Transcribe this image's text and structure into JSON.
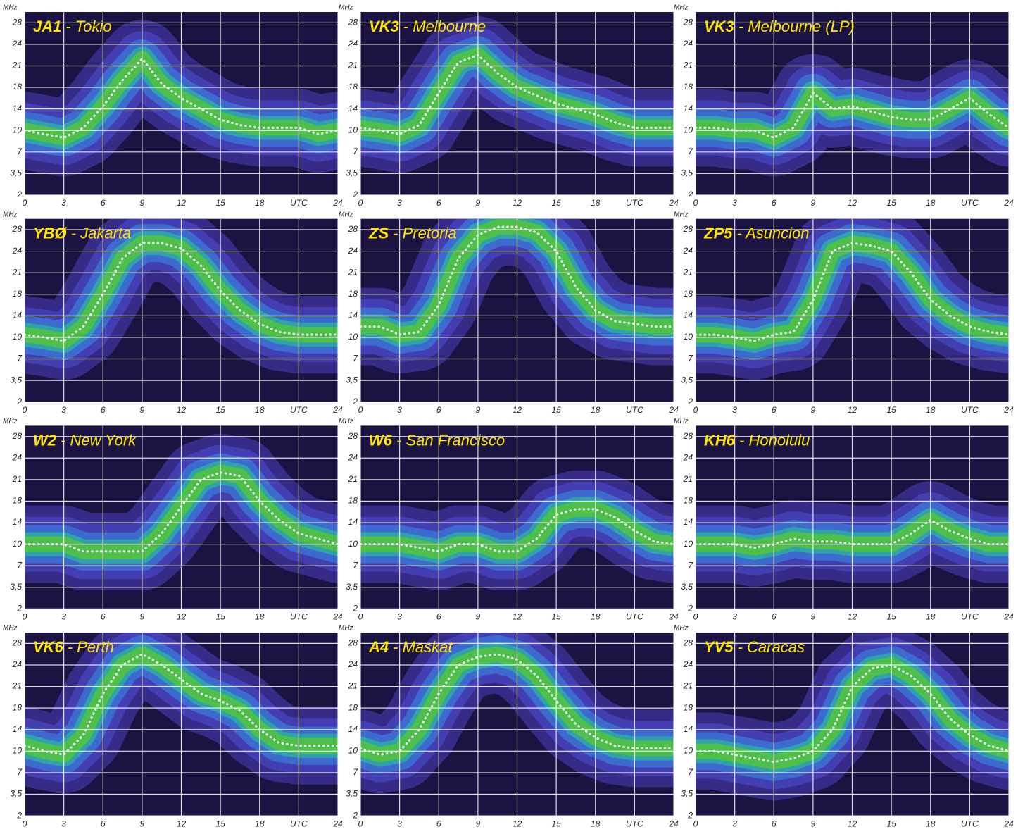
{
  "chart_data": [
    {
      "type": "line",
      "callsign": "JA1",
      "title": "- Tokio",
      "y_label": "MHz",
      "color": "#ffffff",
      "x": [
        0,
        1.5,
        3,
        4.5,
        6,
        7.5,
        9,
        10.5,
        12,
        13.5,
        15,
        16.5,
        18,
        19.5,
        21,
        22.5,
        24
      ],
      "values": [
        10,
        9.5,
        9,
        10.5,
        14.5,
        19,
        22,
        18.5,
        16,
        14,
        12,
        11,
        10.5,
        10.5,
        10.5,
        9.5,
        10
      ],
      "xlim": [
        0,
        24
      ],
      "xticks": [
        0,
        3,
        6,
        9,
        12,
        15,
        18,
        {
          "value": 21,
          "label": "UTC"
        },
        24
      ],
      "ylim": [
        2,
        30
      ],
      "yscale": "tick-index",
      "yticks": [
        2,
        {
          "value": 3.5,
          "label": "3,5"
        },
        7,
        10,
        14,
        18,
        21,
        24,
        28
      ],
      "grid": true
    },
    {
      "type": "line",
      "callsign": "VK3",
      "title": "- Melbourne",
      "y_label": "MHz",
      "color": "#ffffff",
      "x": [
        0,
        1.5,
        3,
        4.5,
        6,
        7.5,
        9,
        10.5,
        12,
        13.5,
        15,
        16.5,
        18,
        19.5,
        21,
        22.5,
        24
      ],
      "values": [
        10.5,
        10,
        9.5,
        11,
        17,
        21.5,
        22.5,
        20,
        18,
        16.5,
        15,
        14,
        13,
        11.5,
        10.5,
        10.5,
        10.5
      ],
      "xlim": [
        0,
        24
      ],
      "xticks": [
        0,
        3,
        6,
        9,
        12,
        15,
        18,
        {
          "value": 21,
          "label": "UTC"
        },
        24
      ],
      "ylim": [
        2,
        30
      ],
      "yscale": "tick-index",
      "yticks": [
        2,
        {
          "value": 3.5,
          "label": "3,5"
        },
        7,
        10,
        14,
        18,
        21,
        24,
        28
      ],
      "grid": true
    },
    {
      "type": "line",
      "callsign": "VK3",
      "title": "- Melbourne (LP)",
      "y_label": "MHz",
      "color": "#ffffff",
      "x": [
        0,
        1.5,
        3,
        4.5,
        6,
        7.5,
        9,
        10.5,
        12,
        13.5,
        15,
        16.5,
        18,
        19.5,
        21,
        22.5,
        24
      ],
      "values": [
        10.5,
        10.5,
        10,
        10,
        9,
        10.5,
        17,
        14,
        14.5,
        13.5,
        12.5,
        12,
        12,
        14,
        16,
        13,
        10.5
      ],
      "xlim": [
        0,
        24
      ],
      "xticks": [
        0,
        3,
        6,
        9,
        12,
        15,
        18,
        {
          "value": 21,
          "label": "UTC"
        },
        24
      ],
      "ylim": [
        2,
        30
      ],
      "yscale": "tick-index",
      "yticks": [
        2,
        {
          "value": 3.5,
          "label": "3,5"
        },
        7,
        10,
        14,
        18,
        21,
        24,
        28
      ],
      "grid": true
    },
    {
      "type": "line",
      "callsign": "YBØ",
      "title": "- Jakarta",
      "y_label": "MHz",
      "color": "#ffffff",
      "x": [
        0,
        1.5,
        3,
        4.5,
        6,
        7.5,
        9,
        10.5,
        12,
        13.5,
        15,
        16.5,
        18,
        19.5,
        21,
        22.5,
        24
      ],
      "values": [
        10.5,
        10,
        9.5,
        12,
        18,
        23,
        25.5,
        25.5,
        24.5,
        22,
        18.5,
        15,
        12.5,
        11,
        10.5,
        10.5,
        10.5
      ],
      "xlim": [
        0,
        24
      ],
      "xticks": [
        0,
        3,
        6,
        9,
        12,
        15,
        18,
        {
          "value": 21,
          "label": "UTC"
        },
        24
      ],
      "ylim": [
        2,
        30
      ],
      "yscale": "tick-index",
      "yticks": [
        2,
        {
          "value": 3.5,
          "label": "3,5"
        },
        7,
        10,
        14,
        18,
        21,
        24,
        28
      ],
      "grid": true
    },
    {
      "type": "line",
      "callsign": "ZS",
      "title": "- Pretoria",
      "y_label": "MHz",
      "color": "#ffffff",
      "x": [
        0,
        1.5,
        3,
        4.5,
        6,
        7.5,
        9,
        10.5,
        12,
        13.5,
        15,
        16.5,
        18,
        19.5,
        21,
        22.5,
        24
      ],
      "values": [
        12,
        12,
        10.5,
        11,
        16,
        23,
        27,
        28.5,
        28.5,
        27.5,
        24,
        19,
        15,
        13,
        12.5,
        12,
        12
      ],
      "xlim": [
        0,
        24
      ],
      "xticks": [
        0,
        3,
        6,
        9,
        12,
        15,
        18,
        {
          "value": 21,
          "label": "UTC"
        },
        24
      ],
      "ylim": [
        2,
        30
      ],
      "yscale": "tick-index",
      "yticks": [
        2,
        {
          "value": 3.5,
          "label": "3,5"
        },
        7,
        10,
        14,
        18,
        21,
        24,
        28
      ],
      "grid": true
    },
    {
      "type": "line",
      "callsign": "ZP5",
      "title": "- Asuncion",
      "y_label": "MHz",
      "color": "#ffffff",
      "x": [
        0,
        1.5,
        3,
        4.5,
        6,
        7.5,
        9,
        10.5,
        12,
        13.5,
        15,
        16.5,
        18,
        19.5,
        21,
        22.5,
        24
      ],
      "values": [
        10.5,
        10.5,
        10,
        9.5,
        10.5,
        11,
        17,
        24,
        25.5,
        25,
        24,
        21,
        17,
        14,
        12,
        11,
        10.5
      ],
      "xlim": [
        0,
        24
      ],
      "xticks": [
        0,
        3,
        6,
        9,
        12,
        15,
        18,
        {
          "value": 21,
          "label": "UTC"
        },
        24
      ],
      "ylim": [
        2,
        30
      ],
      "yscale": "tick-index",
      "yticks": [
        2,
        {
          "value": 3.5,
          "label": "3,5"
        },
        7,
        10,
        14,
        18,
        21,
        24,
        28
      ],
      "grid": true
    },
    {
      "type": "line",
      "callsign": "W2",
      "title": "- New York",
      "y_label": "MHz",
      "color": "#ffffff",
      "x": [
        0,
        1.5,
        3,
        4.5,
        6,
        7.5,
        9,
        10.5,
        12,
        13.5,
        15,
        16.5,
        18,
        19.5,
        21,
        22.5,
        24
      ],
      "values": [
        10,
        10,
        10,
        9,
        9,
        9,
        9,
        12,
        17,
        21,
        22,
        21.5,
        18,
        14.5,
        12,
        11,
        10
      ],
      "xlim": [
        0,
        24
      ],
      "xticks": [
        0,
        3,
        6,
        9,
        12,
        15,
        18,
        {
          "value": 21,
          "label": "UTC"
        },
        24
      ],
      "ylim": [
        2,
        30
      ],
      "yscale": "tick-index",
      "yticks": [
        2,
        {
          "value": 3.5,
          "label": "3,5"
        },
        7,
        10,
        14,
        18,
        21,
        24,
        28
      ],
      "grid": true
    },
    {
      "type": "line",
      "callsign": "W6",
      "title": "- San Francisco",
      "y_label": "MHz",
      "color": "#ffffff",
      "x": [
        0,
        1.5,
        3,
        4.5,
        6,
        7.5,
        9,
        10.5,
        12,
        13.5,
        15,
        16.5,
        18,
        19.5,
        21,
        22.5,
        24
      ],
      "values": [
        10,
        10,
        10,
        9.5,
        9,
        10,
        10,
        9,
        9,
        11,
        15.5,
        16.5,
        16.5,
        15,
        12.5,
        10.5,
        10
      ],
      "xlim": [
        0,
        24
      ],
      "xticks": [
        0,
        3,
        6,
        9,
        12,
        15,
        18,
        {
          "value": 21,
          "label": "UTC"
        },
        24
      ],
      "ylim": [
        2,
        30
      ],
      "yscale": "tick-index",
      "yticks": [
        2,
        {
          "value": 3.5,
          "label": "3,5"
        },
        7,
        10,
        14,
        18,
        21,
        24,
        28
      ],
      "grid": true
    },
    {
      "type": "line",
      "callsign": "KH6",
      "title": "- Honolulu",
      "y_label": "MHz",
      "color": "#ffffff",
      "x": [
        0,
        1.5,
        3,
        4.5,
        6,
        7.5,
        9,
        10.5,
        12,
        13.5,
        15,
        16.5,
        18,
        19.5,
        21,
        22.5,
        24
      ],
      "values": [
        10,
        10,
        10,
        9.5,
        10,
        11,
        10.5,
        10.5,
        10,
        10,
        10,
        12,
        14.5,
        12.5,
        11,
        10,
        10
      ],
      "xlim": [
        0,
        24
      ],
      "xticks": [
        0,
        3,
        6,
        9,
        12,
        15,
        18,
        {
          "value": 21,
          "label": "UTC"
        },
        24
      ],
      "ylim": [
        2,
        30
      ],
      "yscale": "tick-index",
      "yticks": [
        2,
        {
          "value": 3.5,
          "label": "3,5"
        },
        7,
        10,
        14,
        18,
        21,
        24,
        28
      ],
      "grid": true
    },
    {
      "type": "line",
      "callsign": "VK6",
      "title": "- Perth",
      "y_label": "MHz",
      "color": "#ffffff",
      "x": [
        0,
        1.5,
        3,
        4.5,
        6,
        7.5,
        9,
        10.5,
        12,
        13.5,
        15,
        16.5,
        18,
        19.5,
        21,
        22.5,
        24
      ],
      "values": [
        11,
        10,
        9.5,
        13,
        20,
        24,
        26,
        24,
        22,
        20,
        19,
        17.5,
        14,
        11.5,
        11,
        11,
        11
      ],
      "xlim": [
        0,
        24
      ],
      "xticks": [
        0,
        3,
        6,
        9,
        12,
        15,
        18,
        {
          "value": 21,
          "label": "UTC"
        },
        24
      ],
      "ylim": [
        2,
        30
      ],
      "yscale": "tick-index",
      "yticks": [
        2,
        {
          "value": 3.5,
          "label": "3,5"
        },
        7,
        10,
        14,
        18,
        21,
        24,
        28
      ],
      "grid": true
    },
    {
      "type": "line",
      "callsign": "A4",
      "title": "- Maskat",
      "y_label": "MHz",
      "color": "#ffffff",
      "x": [
        0,
        1.5,
        3,
        4.5,
        6,
        7.5,
        9,
        10.5,
        12,
        13.5,
        15,
        16.5,
        18,
        19.5,
        21,
        22.5,
        24
      ],
      "values": [
        10.5,
        9.5,
        10,
        14,
        20,
        24,
        25.5,
        26,
        25,
        22.5,
        19,
        15,
        12.5,
        11,
        10.5,
        10.5,
        10.5
      ],
      "xlim": [
        0,
        24
      ],
      "xticks": [
        0,
        3,
        6,
        9,
        12,
        15,
        18,
        {
          "value": 21,
          "label": "UTC"
        },
        24
      ],
      "ylim": [
        2,
        30
      ],
      "yscale": "tick-index",
      "yticks": [
        2,
        {
          "value": 3.5,
          "label": "3,5"
        },
        7,
        10,
        14,
        18,
        21,
        24,
        28
      ],
      "grid": true
    },
    {
      "type": "line",
      "callsign": "YV5",
      "title": "- Caracas",
      "y_label": "MHz",
      "color": "#ffffff",
      "x": [
        0,
        1.5,
        3,
        4.5,
        6,
        7.5,
        9,
        10.5,
        12,
        13.5,
        15,
        16.5,
        18,
        19.5,
        21,
        22.5,
        24
      ],
      "values": [
        10,
        10,
        9.5,
        9,
        8.5,
        9,
        10,
        14,
        21,
        23.5,
        24,
        22.5,
        20,
        16,
        13,
        11,
        10
      ],
      "xlim": [
        0,
        24
      ],
      "xticks": [
        0,
        3,
        6,
        9,
        12,
        15,
        18,
        {
          "value": 21,
          "label": "UTC"
        },
        24
      ],
      "ylim": [
        2,
        30
      ],
      "yscale": "tick-index",
      "yticks": [
        2,
        {
          "value": 3.5,
          "label": "3,5"
        },
        7,
        10,
        14,
        18,
        21,
        24,
        28
      ],
      "grid": true
    }
  ]
}
